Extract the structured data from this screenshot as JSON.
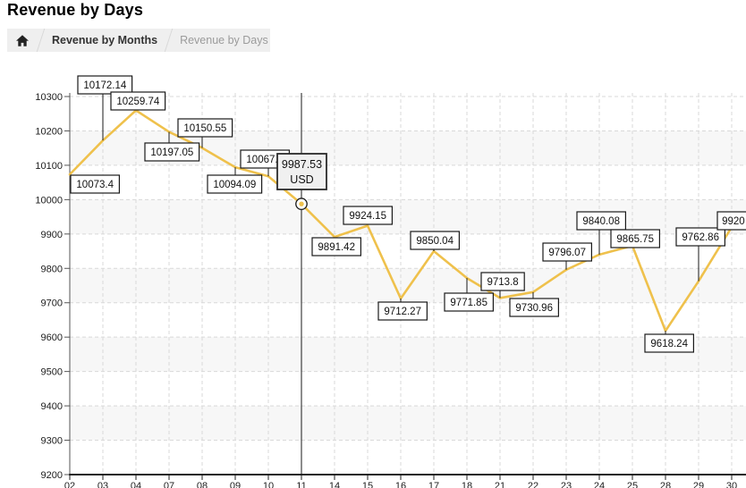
{
  "page": {
    "title": "Revenue by Days"
  },
  "breadcrumb": {
    "home_icon": "home-icon",
    "items": [
      {
        "label": "Revenue by Months",
        "current": false
      },
      {
        "label": "Revenue by Days",
        "current": true
      }
    ]
  },
  "chart_data": {
    "type": "line",
    "title": "",
    "xlabel": "",
    "ylabel": "",
    "x_categories": [
      "02",
      "03",
      "04",
      "07",
      "08",
      "09",
      "10",
      "11",
      "14",
      "15",
      "16",
      "17",
      "18",
      "21",
      "22",
      "23",
      "24",
      "25",
      "28",
      "29",
      "30"
    ],
    "series": [
      {
        "name": "Revenue",
        "color": "#efc14c",
        "values": [
          10073.4,
          10172.14,
          10259.74,
          10197.05,
          10150.55,
          10094.09,
          10067.8,
          9987.53,
          9891.42,
          9924.15,
          9712.27,
          9850.04,
          9771.85,
          9713.8,
          9730.96,
          9796.07,
          9840.08,
          9865.75,
          9618.24,
          9762.86,
          9920
        ]
      }
    ],
    "point_labels": [
      "10073.4",
      "10172.14",
      "10259.74",
      "10197.05",
      "10150.55",
      "10094.09",
      "10067.8",
      "9987.53",
      "9891.42",
      "9924.15",
      "9712.27",
      "9850.04",
      "9771.85",
      "9713.8",
      "9730.96",
      "9796.07",
      "9840.08",
      "9865.75",
      "9618.24",
      "9762.86",
      "9920"
    ],
    "selected": {
      "index": 7,
      "x": "11",
      "tooltip_value": "9987.53",
      "tooltip_unit": "USD"
    },
    "ylim": [
      9200,
      10300
    ],
    "ytick_labels": [
      "9200",
      "9300",
      "9400",
      "9500",
      "9600",
      "9700",
      "9800",
      "9900",
      "10000",
      "10100",
      "10200",
      "10300"
    ],
    "grid": "dashed",
    "legend": "none",
    "colors": {
      "grid": "#d9d9d9",
      "band": "#f7f7f7",
      "axis": "#222222",
      "crosshair": "#1a1a1a",
      "label_border": "#1a1a1a",
      "tooltip_bg": "#f0f0f0"
    }
  }
}
